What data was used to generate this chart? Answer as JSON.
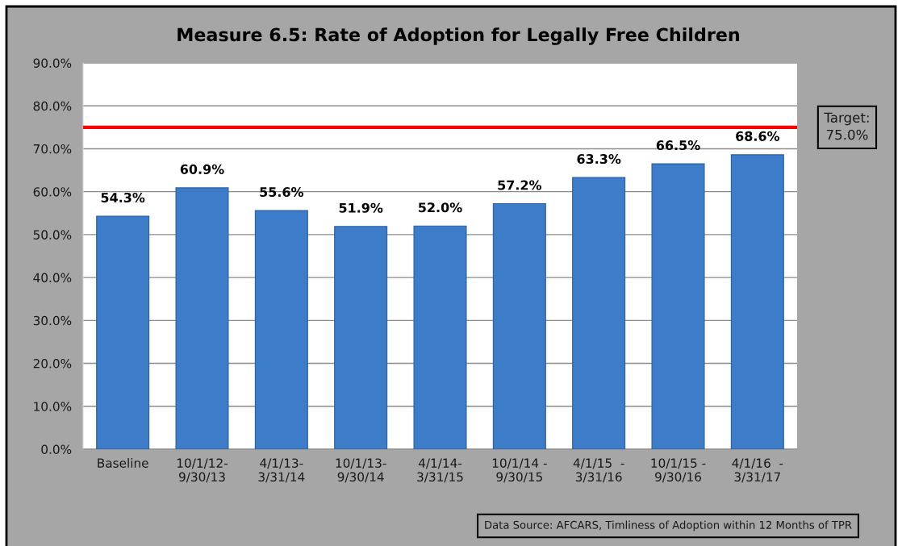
{
  "chart_data": {
    "type": "bar",
    "title": "Measure 6.5: Rate of Adoption for Legally Free Children",
    "categories": [
      "Baseline",
      "10/1/12-\n9/30/13",
      "4/1/13-\n3/31/14",
      "10/1/13-\n9/30/14",
      "4/1/14-\n3/31/15",
      "10/1/14 -\n9/30/15",
      "4/1/15  -\n3/31/16",
      "10/1/15 -\n9/30/16",
      "4/1/16  -\n3/31/17"
    ],
    "values": [
      54.3,
      60.9,
      55.6,
      51.9,
      52.0,
      57.2,
      63.3,
      66.5,
      68.6
    ],
    "value_labels": [
      "54.3%",
      "60.9%",
      "55.6%",
      "51.9%",
      "52.0%",
      "57.2%",
      "63.3%",
      "66.5%",
      "68.6%"
    ],
    "color": "#3d7cc9",
    "ylim": [
      0,
      90
    ],
    "yticks": [
      {
        "value": 0,
        "label": "0.0%"
      },
      {
        "value": 10,
        "label": "10.0%"
      },
      {
        "value": 20,
        "label": "20.0%"
      },
      {
        "value": 30,
        "label": "30.0%"
      },
      {
        "value": 40,
        "label": "40.0%"
      },
      {
        "value": 50,
        "label": "50.0%"
      },
      {
        "value": 60,
        "label": "60.0%"
      },
      {
        "value": 70,
        "label": "70.0%"
      },
      {
        "value": 80,
        "label": "80.0%"
      },
      {
        "value": 90,
        "label": "90.0%"
      }
    ],
    "grid": "y",
    "ref_lines": [
      {
        "axis": "y",
        "value": 75,
        "label": "Target:\n75.0%",
        "color": "#ff0000"
      }
    ],
    "annotations": [
      "Data Source: AFCARS, Timliness of Adoption within 12 Months of TPR"
    ]
  }
}
